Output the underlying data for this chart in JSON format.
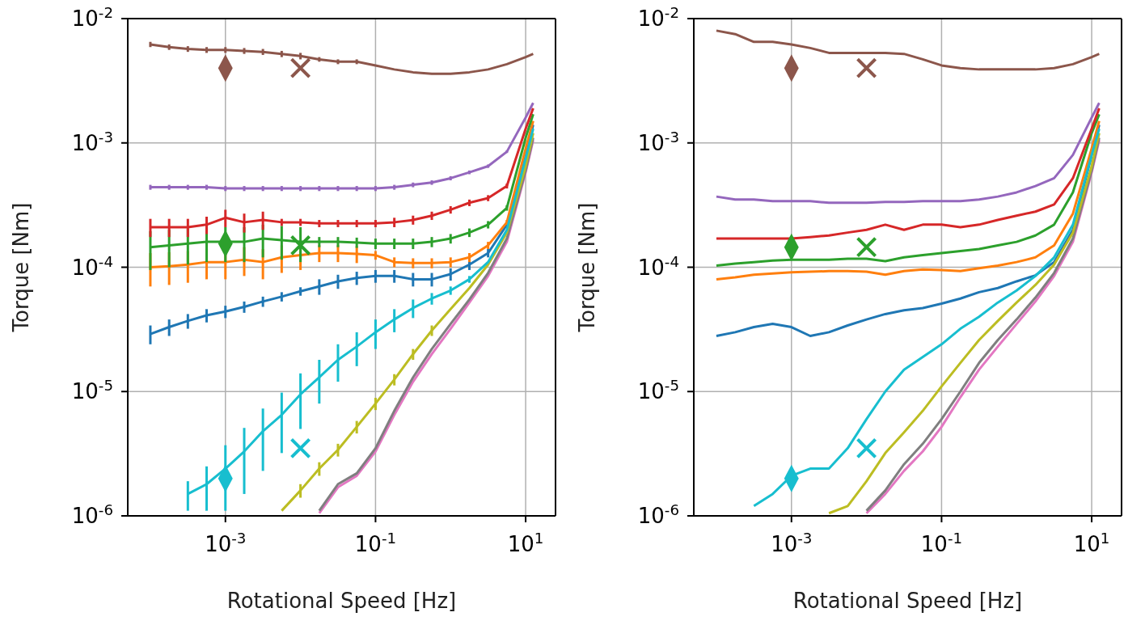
{
  "chart_data": [
    {
      "type": "line",
      "xlabel": "Rotational Speed [Hz]",
      "ylabel": "Torque [Nm]",
      "log": "xy",
      "grid": true,
      "xlim": [
        5e-05,
        25
      ],
      "ylim": [
        1e-06,
        0.01
      ],
      "xticks": [
        {
          "value": 0.001,
          "label": "10$^{-3}$"
        },
        {
          "value": 0.1,
          "label": "10$^{-1}$"
        },
        {
          "value": 10,
          "label": "10$^{1}$"
        }
      ],
      "yticks": [
        {
          "value": 1e-06,
          "label": "10$^{-6}$"
        },
        {
          "value": 1e-05,
          "label": "10$^{-5}$"
        },
        {
          "value": 0.0001,
          "label": "10$^{-4}$"
        },
        {
          "value": 0.001,
          "label": "10$^{-3}$"
        },
        {
          "value": 0.01,
          "label": "10$^{-2}$"
        }
      ],
      "x": [
        0.0001,
        0.000178,
        0.000316,
        0.000562,
        0.001,
        0.00178,
        0.00316,
        0.00562,
        0.01,
        0.0178,
        0.0316,
        0.0562,
        0.1,
        0.178,
        0.316,
        0.562,
        1,
        1.78,
        3.16,
        5.62,
        10,
        12.6
      ],
      "series": [
        {
          "color": "#1f77b4",
          "values": [
            2.9e-05,
            3.3e-05,
            3.7e-05,
            4.1e-05,
            4.4e-05,
            4.8e-05,
            5.3e-05,
            5.8e-05,
            6.4e-05,
            7e-05,
            7.7e-05,
            8.2e-05,
            8.5e-05,
            8.5e-05,
            8e-05,
            8e-05,
            8.8e-05,
            0.000105,
            0.00013,
            0.00022,
            0.0008,
            0.0014
          ],
          "errors": [
            5e-06,
            5e-06,
            5e-06,
            5e-06,
            5e-06,
            5e-06,
            5e-06,
            5e-06,
            5e-06,
            1e-05,
            1e-05,
            1e-05,
            1e-05,
            1e-05,
            1e-05,
            1e-05,
            1e-05,
            1e-05,
            1e-05,
            1e-05,
            null,
            null
          ]
        },
        {
          "color": "#ff7f0e",
          "values": [
            0.0001,
            0.000102,
            0.000105,
            0.00011,
            0.00011,
            0.000115,
            0.00011,
            0.00012,
            0.000125,
            0.00013,
            0.00013,
            0.000128,
            0.000125,
            0.00011,
            0.000108,
            0.000108,
            0.00011,
            0.00012,
            0.00015,
            0.00023,
            0.0009,
            0.0015
          ],
          "errors": [
            3e-05,
            3e-05,
            3e-05,
            3e-05,
            3e-05,
            3e-05,
            3e-05,
            3e-05,
            3e-05,
            2e-05,
            2e-05,
            2e-05,
            1e-05,
            1e-05,
            1e-05,
            1e-05,
            1e-05,
            1e-05,
            1e-05,
            1e-05,
            null,
            null
          ]
        },
        {
          "color": "#2ca02c",
          "values": [
            0.000145,
            0.00015,
            0.000155,
            0.00016,
            0.00016,
            0.00016,
            0.00017,
            0.000165,
            0.00016,
            0.00016,
            0.00016,
            0.000158,
            0.000155,
            0.000155,
            0.000155,
            0.00016,
            0.00017,
            0.00019,
            0.00022,
            0.0003,
            0.0011,
            0.0017
          ],
          "errors": [
            5e-05,
            5e-05,
            5e-05,
            5e-05,
            5e-05,
            5e-05,
            5e-05,
            5e-05,
            5e-05,
            1.5e-05,
            1.5e-05,
            1.5e-05,
            1.5e-05,
            1.5e-05,
            1.5e-05,
            1.5e-05,
            1.5e-05,
            1.5e-05,
            1.5e-05,
            1.5e-05,
            null,
            null
          ]
        },
        {
          "color": "#d62728",
          "values": [
            0.00021,
            0.00021,
            0.00021,
            0.00022,
            0.00025,
            0.00023,
            0.00024,
            0.00023,
            0.00023,
            0.000225,
            0.000225,
            0.000225,
            0.000225,
            0.00023,
            0.00024,
            0.00026,
            0.00029,
            0.00033,
            0.00036,
            0.00045,
            0.0013,
            0.0019
          ],
          "errors": [
            3.5e-05,
            3.5e-05,
            3.5e-05,
            3.5e-05,
            4e-05,
            4e-05,
            4e-05,
            1.5e-05,
            1.5e-05,
            1.5e-05,
            1.5e-05,
            1.5e-05,
            1.5e-05,
            2e-05,
            2e-05,
            2e-05,
            2e-05,
            2e-05,
            2e-05,
            2e-05,
            null,
            null
          ]
        },
        {
          "color": "#9467bd",
          "values": [
            0.00044,
            0.00044,
            0.00044,
            0.00044,
            0.00043,
            0.00043,
            0.00043,
            0.00043,
            0.00043,
            0.00043,
            0.00043,
            0.00043,
            0.00043,
            0.00044,
            0.00046,
            0.00048,
            0.00052,
            0.00058,
            0.00065,
            0.00085,
            0.0016,
            0.0021
          ],
          "errors": [
            2e-05,
            2e-05,
            2e-05,
            2e-05,
            2e-05,
            2e-05,
            2e-05,
            2e-05,
            2e-05,
            2e-05,
            2e-05,
            2e-05,
            2e-05,
            2e-05,
            2e-05,
            2e-05,
            2e-05,
            2e-05,
            2e-05,
            2e-05,
            null,
            null
          ]
        },
        {
          "color": "#8c564b",
          "values": [
            0.0062,
            0.0059,
            0.0057,
            0.0056,
            0.0056,
            0.0055,
            0.0054,
            0.0052,
            0.005,
            0.0047,
            0.0045,
            0.0045,
            0.0042,
            0.0039,
            0.0037,
            0.0036,
            0.0036,
            0.0037,
            0.0039,
            0.0043,
            0.0049,
            0.0052
          ],
          "errors": [
            0.0003,
            0.0003,
            0.0003,
            0.0003,
            0.0003,
            0.0003,
            0.0003,
            0.0003,
            0.0003,
            0.0002,
            0.0002,
            0.0002,
            null,
            null,
            null,
            null,
            null,
            null,
            null,
            null,
            null,
            null
          ]
        },
        {
          "color": "#e377c2",
          "values": [
            null,
            null,
            null,
            null,
            null,
            null,
            null,
            null,
            null,
            1.05e-06,
            1.7e-06,
            2.1e-06,
            3.3e-06,
            6.5e-06,
            1.2e-05,
            2e-05,
            3.2e-05,
            5.2e-05,
            8.5e-05,
            0.00016,
            0.00058,
            0.00105
          ]
        },
        {
          "color": "#7f7f7f",
          "values": [
            null,
            null,
            null,
            null,
            null,
            null,
            null,
            null,
            null,
            1.1e-06,
            1.8e-06,
            2.2e-06,
            3.5e-06,
            7e-06,
            1.3e-05,
            2.2e-05,
            3.5e-05,
            5.5e-05,
            9e-05,
            0.00017,
            0.0006,
            0.0011
          ]
        },
        {
          "color": "#bcbd22",
          "values": [
            null,
            null,
            null,
            null,
            null,
            null,
            null,
            1.1e-06,
            1.6e-06,
            2.4e-06,
            3.4e-06,
            5.2e-06,
            8e-06,
            1.25e-05,
            2e-05,
            3.1e-05,
            4.6e-05,
            6.8e-05,
            0.000105,
            0.00019,
            0.00065,
            0.0012
          ],
          "errors": [
            null,
            null,
            null,
            null,
            null,
            null,
            null,
            null,
            2e-07,
            3e-07,
            4e-07,
            6e-07,
            9e-07,
            1.3e-06,
            2e-06,
            3e-06,
            null,
            null,
            null,
            null,
            null,
            null
          ]
        },
        {
          "color": "#17becf",
          "values": [
            null,
            null,
            1.5e-06,
            1.8e-06,
            2.4e-06,
            3.3e-06,
            4.8e-06,
            6.5e-06,
            9.5e-06,
            1.3e-05,
            1.8e-05,
            2.3e-05,
            3e-05,
            3.8e-05,
            4.7e-05,
            5.6e-05,
            6.5e-05,
            8e-05,
            0.00011,
            0.0002,
            0.00075,
            0.0013
          ],
          "errors": [
            null,
            null,
            4e-07,
            7e-07,
            1.3e-06,
            1.8e-06,
            2.5e-06,
            3.3e-06,
            4.5e-06,
            5e-06,
            6e-06,
            7e-06,
            8e-06,
            8e-06,
            8e-06,
            6e-06,
            5e-06,
            5e-06,
            null,
            null,
            null,
            null
          ]
        },
        {
          "type": "scatter",
          "marker": "diamond",
          "values": [
            null,
            null,
            null,
            null,
            0.004,
            null,
            null,
            null,
            null,
            null,
            null,
            null,
            null,
            null,
            null,
            null,
            null,
            null,
            null,
            null,
            null,
            null
          ],
          "color": "#8c564b"
        },
        {
          "type": "scatter",
          "marker": "diamond",
          "values": [
            null,
            null,
            null,
            null,
            0.000155,
            null,
            null,
            null,
            null,
            null,
            null,
            null,
            null,
            null,
            null,
            null,
            null,
            null,
            null,
            null,
            null,
            null
          ],
          "color": "#2ca02c"
        },
        {
          "type": "scatter",
          "marker": "diamond",
          "values": [
            null,
            null,
            null,
            null,
            2e-06,
            null,
            null,
            null,
            null,
            null,
            null,
            null,
            null,
            null,
            null,
            null,
            null,
            null,
            null,
            null,
            null,
            null
          ],
          "color": "#17becf"
        },
        {
          "type": "scatter",
          "marker": "cross",
          "values": [
            null,
            null,
            null,
            null,
            null,
            null,
            null,
            null,
            0.004,
            null,
            null,
            null,
            null,
            null,
            null,
            null,
            null,
            null,
            null,
            null,
            null,
            null
          ],
          "color": "#8c564b"
        },
        {
          "type": "scatter",
          "marker": "cross",
          "values": [
            null,
            null,
            null,
            null,
            null,
            null,
            null,
            null,
            0.00015,
            null,
            null,
            null,
            null,
            null,
            null,
            null,
            null,
            null,
            null,
            null,
            null,
            null
          ],
          "color": "#2ca02c"
        },
        {
          "type": "scatter",
          "marker": "cross",
          "values": [
            null,
            null,
            null,
            null,
            null,
            null,
            null,
            null,
            3.5e-06,
            null,
            null,
            null,
            null,
            null,
            null,
            null,
            null,
            null,
            null,
            null,
            null,
            null
          ],
          "color": "#17becf"
        }
      ]
    },
    {
      "type": "line",
      "xlabel": "Rotational Speed [Hz]",
      "ylabel": "Torque [Nm]",
      "log": "xy",
      "grid": true,
      "xlim": [
        5e-05,
        25
      ],
      "ylim": [
        1e-06,
        0.01
      ],
      "xticks": [
        {
          "value": 0.001,
          "label": "10$^{-3}$"
        },
        {
          "value": 0.1,
          "label": "10$^{-1}$"
        },
        {
          "value": 10,
          "label": "10$^{1}$"
        }
      ],
      "yticks": [
        {
          "value": 1e-06,
          "label": "10$^{-6}$"
        },
        {
          "value": 1e-05,
          "label": "10$^{-5}$"
        },
        {
          "value": 0.0001,
          "label": "10$^{-4}$"
        },
        {
          "value": 0.001,
          "label": "10$^{-3}$"
        },
        {
          "value": 0.01,
          "label": "10$^{-2}$"
        }
      ],
      "x": [
        0.0001,
        0.000178,
        0.000316,
        0.000562,
        0.001,
        0.00178,
        0.00316,
        0.00562,
        0.01,
        0.0178,
        0.0316,
        0.0562,
        0.1,
        0.178,
        0.316,
        0.562,
        1,
        1.78,
        3.16,
        5.62,
        10,
        12.6
      ],
      "series": [
        {
          "color": "#1f77b4",
          "values": [
            2.8e-05,
            3e-05,
            3.3e-05,
            3.5e-05,
            3.3e-05,
            2.8e-05,
            3e-05,
            3.4e-05,
            3.8e-05,
            4.2e-05,
            4.5e-05,
            4.7e-05,
            5.1e-05,
            5.6e-05,
            6.3e-05,
            6.8e-05,
            7.7e-05,
            8.6e-05,
            0.00011,
            0.0002,
            0.0008,
            0.0014
          ]
        },
        {
          "color": "#ff7f0e",
          "values": [
            8e-05,
            8.3e-05,
            8.7e-05,
            8.9e-05,
            9.1e-05,
            9.2e-05,
            9.3e-05,
            9.3e-05,
            9.2e-05,
            8.7e-05,
            9.3e-05,
            9.6e-05,
            9.5e-05,
            9.3e-05,
            9.8e-05,
            0.000103,
            0.00011,
            0.00012,
            0.00015,
            0.00027,
            0.0009,
            0.0015
          ]
        },
        {
          "color": "#2ca02c",
          "values": [
            0.000103,
            0.000107,
            0.00011,
            0.000113,
            0.000115,
            0.000115,
            0.000115,
            0.000117,
            0.000117,
            0.000112,
            0.00012,
            0.000125,
            0.00013,
            0.000135,
            0.00014,
            0.00015,
            0.00016,
            0.00018,
            0.00022,
            0.0004,
            0.0012,
            0.0017
          ]
        },
        {
          "color": "#d62728",
          "values": [
            0.00017,
            0.00017,
            0.00017,
            0.00017,
            0.00017,
            0.000175,
            0.00018,
            0.00019,
            0.0002,
            0.00022,
            0.0002,
            0.00022,
            0.00022,
            0.00021,
            0.00022,
            0.00024,
            0.00026,
            0.00028,
            0.00032,
            0.00052,
            0.0013,
            0.0019
          ]
        },
        {
          "color": "#9467bd",
          "values": [
            0.00037,
            0.00035,
            0.00035,
            0.00034,
            0.00034,
            0.00034,
            0.00033,
            0.00033,
            0.00033,
            0.000335,
            0.000335,
            0.00034,
            0.00034,
            0.00034,
            0.00035,
            0.00037,
            0.0004,
            0.00045,
            0.00052,
            0.0008,
            0.0016,
            0.0021
          ]
        },
        {
          "color": "#8c564b",
          "values": [
            0.008,
            0.0075,
            0.0065,
            0.0065,
            0.0062,
            0.0058,
            0.0053,
            0.0053,
            0.0053,
            0.0053,
            0.0052,
            0.0047,
            0.0042,
            0.004,
            0.0039,
            0.0039,
            0.0039,
            0.0039,
            0.004,
            0.0043,
            0.0049,
            0.0052
          ]
        },
        {
          "color": "#e377c2",
          "values": [
            null,
            null,
            null,
            null,
            null,
            null,
            null,
            null,
            1.05e-06,
            1.5e-06,
            2.3e-06,
            3.3e-06,
            5.2e-06,
            9e-06,
            1.5e-05,
            2.3e-05,
            3.5e-05,
            5.3e-05,
            8.5e-05,
            0.00016,
            0.00058,
            0.00105
          ]
        },
        {
          "color": "#7f7f7f",
          "values": [
            null,
            null,
            null,
            null,
            null,
            null,
            null,
            null,
            1.1e-06,
            1.6e-06,
            2.6e-06,
            3.8e-06,
            6e-06,
            1e-05,
            1.7e-05,
            2.6e-05,
            3.8e-05,
            5.7e-05,
            9e-05,
            0.00017,
            0.0006,
            0.0011
          ]
        },
        {
          "color": "#bcbd22",
          "values": [
            null,
            null,
            null,
            null,
            null,
            null,
            1.05e-06,
            1.2e-06,
            1.9e-06,
            3.2e-06,
            4.7e-06,
            7e-06,
            1.1e-05,
            1.7e-05,
            2.6e-05,
            3.7e-05,
            5.2e-05,
            7.2e-05,
            0.000105,
            0.00019,
            0.00065,
            0.0012
          ]
        },
        {
          "color": "#17becf",
          "values": [
            null,
            null,
            1.2e-06,
            1.5e-06,
            2.1e-06,
            2.4e-06,
            2.4e-06,
            3.5e-06,
            6e-06,
            1e-05,
            1.5e-05,
            1.9e-05,
            2.4e-05,
            3.2e-05,
            4e-05,
            5.2e-05,
            6.5e-05,
            8.5e-05,
            0.00012,
            0.00022,
            0.0008,
            0.0013
          ]
        },
        {
          "type": "scatter",
          "marker": "diamond",
          "values": [
            null,
            null,
            null,
            null,
            0.004,
            null,
            null,
            null,
            null,
            null,
            null,
            null,
            null,
            null,
            null,
            null,
            null,
            null,
            null,
            null,
            null,
            null
          ],
          "color": "#8c564b"
        },
        {
          "type": "scatter",
          "marker": "diamond",
          "values": [
            null,
            null,
            null,
            null,
            0.000145,
            null,
            null,
            null,
            null,
            null,
            null,
            null,
            null,
            null,
            null,
            null,
            null,
            null,
            null,
            null,
            null,
            null
          ],
          "color": "#2ca02c"
        },
        {
          "type": "scatter",
          "marker": "diamond",
          "values": [
            null,
            null,
            null,
            null,
            2e-06,
            null,
            null,
            null,
            null,
            null,
            null,
            null,
            null,
            null,
            null,
            null,
            null,
            null,
            null,
            null,
            null,
            null
          ],
          "color": "#17becf"
        },
        {
          "type": "scatter",
          "marker": "cross",
          "values": [
            null,
            null,
            null,
            null,
            null,
            null,
            null,
            null,
            0.004,
            null,
            null,
            null,
            null,
            null,
            null,
            null,
            null,
            null,
            null,
            null,
            null,
            null
          ],
          "color": "#8c564b"
        },
        {
          "type": "scatter",
          "marker": "cross",
          "values": [
            null,
            null,
            null,
            null,
            null,
            null,
            null,
            null,
            0.000145,
            null,
            null,
            null,
            null,
            null,
            null,
            null,
            null,
            null,
            null,
            null,
            null,
            null
          ],
          "color": "#2ca02c"
        },
        {
          "type": "scatter",
          "marker": "cross",
          "values": [
            null,
            null,
            null,
            null,
            null,
            null,
            null,
            null,
            3.5e-06,
            null,
            null,
            null,
            null,
            null,
            null,
            null,
            null,
            null,
            null,
            null,
            null,
            null
          ],
          "color": "#17becf"
        }
      ]
    }
  ]
}
